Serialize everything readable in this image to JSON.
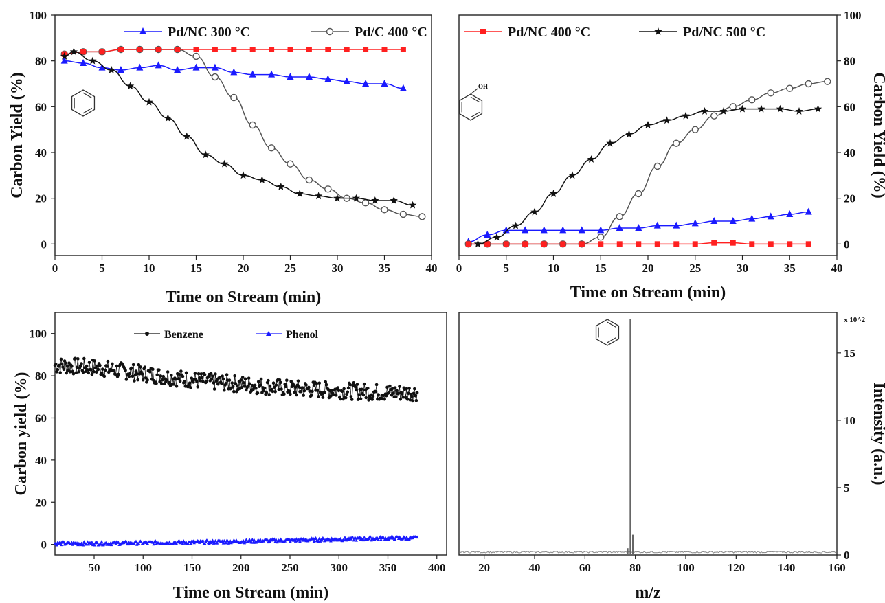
{
  "chart_data": [
    {
      "type": "line",
      "panel": "top-left",
      "xlabel": "Time on Stream (min)",
      "ylabel": "Carbon Yield (%)",
      "xlim": [
        0,
        40
      ],
      "ylim": [
        -5,
        100
      ],
      "x_ticks": [
        "0",
        "5",
        "10",
        "15",
        "20",
        "25",
        "30",
        "35",
        "40"
      ],
      "y_ticks": [
        "0",
        "20",
        "40",
        "60",
        "80",
        "100"
      ],
      "legend_position": "top",
      "molecule_icon": "benzene-ring",
      "series": [
        {
          "name": "Pd/NC 300 °C",
          "color": "#1a1aff",
          "marker": "triangle",
          "x": [
            1,
            3,
            5,
            7,
            9,
            11,
            13,
            15,
            17,
            19,
            21,
            23,
            25,
            27,
            29,
            31,
            33,
            35,
            37
          ],
          "y": [
            80,
            79,
            77,
            76,
            77,
            78,
            76,
            77,
            77,
            75,
            74,
            74,
            73,
            73,
            72,
            71,
            70,
            70,
            68
          ]
        },
        {
          "name": "Pd/C 400 °C",
          "color": "#555555",
          "marker": "open-circle",
          "x": [
            1,
            3,
            5,
            7,
            9,
            11,
            13,
            15,
            17,
            19,
            21,
            23,
            25,
            27,
            29,
            31,
            33,
            35,
            37,
            39
          ],
          "y": [
            83,
            84,
            84,
            85,
            85,
            85,
            85,
            82,
            73,
            64,
            52,
            42,
            35,
            28,
            24,
            20,
            18,
            15,
            13,
            12
          ]
        },
        {
          "name": "Pd/NC 400 °C",
          "color": "#ff2020",
          "marker": "square",
          "x": [
            1,
            3,
            5,
            7,
            9,
            11,
            13,
            15,
            17,
            19,
            21,
            23,
            25,
            27,
            29,
            31,
            33,
            35,
            37
          ],
          "y": [
            83,
            84,
            84,
            85,
            85,
            85,
            85,
            85,
            85,
            85,
            85,
            85,
            85,
            85,
            85,
            85,
            85,
            85,
            85
          ]
        },
        {
          "name": "Pd/NC 500 °C",
          "color": "#111111",
          "marker": "star",
          "x": [
            1,
            2,
            4,
            6,
            8,
            10,
            12,
            14,
            16,
            18,
            20,
            22,
            24,
            26,
            28,
            30,
            32,
            34,
            36,
            38
          ],
          "y": [
            82,
            84,
            80,
            76,
            69,
            62,
            55,
            47,
            39,
            35,
            30,
            28,
            25,
            22,
            21,
            20,
            20,
            19,
            19,
            17
          ]
        }
      ]
    },
    {
      "type": "line",
      "panel": "top-right",
      "xlabel": "Time on Stream (min)",
      "ylabel": "Carbon Yield (%)",
      "xlim": [
        0,
        40
      ],
      "ylim": [
        -5,
        100
      ],
      "x_ticks": [
        "0",
        "5",
        "10",
        "15",
        "20",
        "25",
        "30",
        "35",
        "40"
      ],
      "y_ticks": [
        "0",
        "20",
        "40",
        "60",
        "80",
        "100"
      ],
      "molecule_icon": "phenol",
      "molecule_label": "OH",
      "series": [
        {
          "name": "Pd/NC 300 °C",
          "color": "#1a1aff",
          "marker": "triangle",
          "x": [
            1,
            3,
            5,
            7,
            9,
            11,
            13,
            15,
            17,
            19,
            21,
            23,
            25,
            27,
            29,
            31,
            33,
            35,
            37
          ],
          "y": [
            1,
            4,
            6,
            6,
            6,
            6,
            6,
            6,
            7,
            7,
            8,
            8,
            9,
            10,
            10,
            11,
            12,
            13,
            14
          ]
        },
        {
          "name": "Pd/C 400 °C",
          "color": "#555555",
          "marker": "open-circle",
          "x": [
            1,
            3,
            5,
            7,
            9,
            11,
            13,
            15,
            17,
            19,
            21,
            23,
            25,
            27,
            29,
            31,
            33,
            35,
            37,
            39
          ],
          "y": [
            0,
            0,
            0,
            0,
            0,
            0,
            0,
            3,
            12,
            22,
            34,
            44,
            50,
            56,
            60,
            63,
            66,
            68,
            70,
            71
          ]
        },
        {
          "name": "Pd/NC 400 °C",
          "color": "#ff2020",
          "marker": "square",
          "x": [
            1,
            3,
            5,
            7,
            9,
            11,
            13,
            15,
            17,
            19,
            21,
            23,
            25,
            27,
            29,
            31,
            33,
            35,
            37
          ],
          "y": [
            0,
            0,
            0,
            0,
            0,
            0,
            0,
            0,
            0,
            0,
            0,
            0,
            0,
            0.5,
            0.5,
            0,
            0,
            0,
            0
          ]
        },
        {
          "name": "Pd/NC 500 °C",
          "color": "#111111",
          "marker": "star",
          "x": [
            2,
            4,
            6,
            8,
            10,
            12,
            14,
            16,
            18,
            20,
            22,
            24,
            26,
            28,
            30,
            32,
            34,
            36,
            38
          ],
          "y": [
            0,
            3,
            8,
            14,
            22,
            30,
            37,
            44,
            48,
            52,
            54,
            56,
            58,
            58,
            59,
            59,
            59,
            58,
            59
          ]
        }
      ]
    },
    {
      "type": "scatter",
      "panel": "bottom-left",
      "xlabel": "Time on Stream (min)",
      "ylabel": "Carbon yield (%)",
      "xlim": [
        10,
        410
      ],
      "ylim": [
        -5,
        110
      ],
      "x_ticks": [
        "50",
        "100",
        "150",
        "200",
        "250",
        "300",
        "350",
        "400"
      ],
      "y_ticks": [
        "0",
        "20",
        "40",
        "60",
        "80",
        "100"
      ],
      "legend_position": "top-left",
      "series": [
        {
          "name": "Benzene",
          "color": "#111111",
          "marker": "filled-circle",
          "x": [
            10,
            50,
            100,
            150,
            200,
            250,
            300,
            350,
            380
          ],
          "y": [
            85,
            84,
            81,
            78,
            76,
            74,
            73,
            72,
            72
          ],
          "scatter_amplitude": 4
        },
        {
          "name": "Phenol",
          "color": "#1a1aff",
          "marker": "triangle",
          "x": [
            10,
            50,
            100,
            150,
            200,
            250,
            300,
            350,
            380
          ],
          "y": [
            0.5,
            0.5,
            0.8,
            1,
            1.5,
            2,
            2.5,
            3,
            3
          ],
          "scatter_amplitude": 0.8
        }
      ]
    },
    {
      "type": "bar",
      "panel": "bottom-right",
      "xlabel": "m/z",
      "ylabel": "Intensity (a.u.)",
      "multiplier": "x 10^2",
      "xlim": [
        10,
        160
      ],
      "ylim": [
        0,
        18
      ],
      "x_ticks": [
        "20",
        "40",
        "60",
        "80",
        "100",
        "120",
        "140",
        "160"
      ],
      "y_ticks": [
        "0",
        "5",
        "10",
        "15"
      ],
      "molecule_icon": "benzene-ring",
      "peaks": {
        "mz": [
          77,
          78,
          79
        ],
        "intensity": [
          0.5,
          17.5,
          1.5
        ]
      }
    }
  ]
}
